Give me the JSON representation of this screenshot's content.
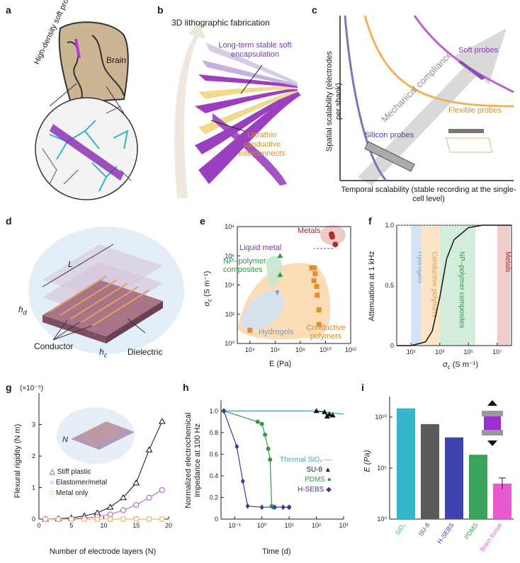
{
  "panels": {
    "a": {
      "label": "a",
      "probe": "High-density soft probe",
      "brain": "Brain"
    },
    "b": {
      "label": "b",
      "title": "3D lithographic fabrication",
      "encap": "Long-term stable soft encapsulation",
      "interconnects": "Ultrathin conductive interconnects"
    },
    "c": {
      "label": "c",
      "ylabel": "Spatial scalability (electrodes per shank)",
      "xlabel": "Temporal scalability (stable recording at the single-cell level)",
      "arrow": "Mechanical compliance",
      "soft": "Soft probes",
      "flexible": "Flexible probes",
      "silicon": "Silicon probes"
    },
    "d": {
      "label": "d",
      "L": "L",
      "hd": "h",
      "hd_sub": "d",
      "hc": "h",
      "hc_sub": "c",
      "dielectric": "Dielectric",
      "conductor": "Conductor"
    },
    "e": {
      "label": "e",
      "ylabel": "σ",
      "ylabel_sub": "c",
      "ylabel_unit": "(S m⁻¹)",
      "xlabel": "E (Pa)",
      "metals": "Metals",
      "liquid": "Liquid metal",
      "np": "NP–polymer composites",
      "hydrogels": "Hydrogels",
      "cp": "Conductive polymers",
      "yticks": [
        "10⁰",
        "10²",
        "10⁴",
        "10⁶",
        "10⁸"
      ],
      "xticks": [
        "10⁴",
        "10⁶",
        "10⁸",
        "10¹⁰",
        "10¹²"
      ]
    },
    "f": {
      "label": "f",
      "ylabel": "Attenuation at 1 kHz",
      "xlabel": "σ",
      "xlabel_sub": "c",
      "xlabel_unit": "(S m⁻¹)",
      "yticks": [
        "0",
        "0.5",
        "1.0"
      ],
      "xticks": [
        "10¹",
        "10³",
        "10⁵",
        "10⁷"
      ],
      "bands": [
        "Hydrogels",
        "Conductive polymers",
        "NP–polymer composites",
        "Metals"
      ]
    },
    "g": {
      "label": "g",
      "ylabel": "Flexural rigidity (N m)",
      "multiplier": "(×10⁻⁵)",
      "xlabel": "Number of electrode layers (N)",
      "N": "N",
      "yticks": [
        "0",
        "1",
        "2",
        "3"
      ],
      "xticks": [
        "0",
        "5",
        "10",
        "15",
        "20"
      ],
      "legend": [
        "Stiff plastic",
        "Elastomer/metal",
        "Metal only"
      ]
    },
    "h": {
      "label": "h",
      "ylabel": "Normalized electrochemical impedance at 100 Hz",
      "xlabel": "Time (d)",
      "yticks": [
        "0",
        "0.2",
        "0.4",
        "0.6",
        "0.8",
        "1.0"
      ],
      "xticks": [
        "10⁻¹",
        "10⁰",
        "10¹",
        "10²",
        "10³"
      ],
      "legend": [
        "Thermal SiO₂",
        "SU-8",
        "PDMS",
        "H-SEBS"
      ]
    },
    "i": {
      "label": "i",
      "ylabel": "E (Pa)",
      "yticks": [
        "10⁰",
        "10⁵",
        "10¹⁰"
      ]
    }
  },
  "colors": {
    "purple": "#9a3fc0",
    "orange": "#eea64a",
    "blue": "#3b3aa0",
    "green": "#2e9a4a",
    "cyan": "#34b7c9",
    "pink": "#e85ad3",
    "metalred": "#b02a2a",
    "gray": "#9a9a9a"
  },
  "chart_data": [
    {
      "panel": "e",
      "type": "scatter",
      "xlabel": "E (Pa)",
      "ylabel": "σc (S m⁻¹)",
      "xlim": [
        1000.0,
        1000000000000.0
      ],
      "ylim": [
        1,
        100000000.0
      ],
      "log": true,
      "series": [
        {
          "name": "Metals",
          "points": [
            [
              30000000000.0,
              30000000.0
            ],
            [
              35000000000.0,
              20000000.0
            ],
            [
              60000000000.0,
              6000000.0
            ]
          ]
        },
        {
          "name": "Conductive polymers",
          "points": [
            [
              10000.0,
              8
            ],
            [
              800000000.0,
              150000.0
            ],
            [
              1300000000.0,
              150000.0
            ],
            [
              1500000000.0,
              60000.0
            ],
            [
              1200000000.0,
              20000.0
            ],
            [
              2000000000.0,
              8000.0
            ],
            [
              2200000000.0,
              2000.0
            ],
            [
              3000000000.0,
              200.0
            ],
            [
              3000000000.0,
              20.0
            ]
          ]
        },
        {
          "name": "NP–polymer composites",
          "points": [
            [
              2500000.0,
              1000000.0
            ],
            [
              2500000.0,
              50000.0
            ]
          ]
        },
        {
          "name": "Hydrogels",
          "points": [
            [
              1500000.0,
              3000.0
            ]
          ]
        }
      ]
    },
    {
      "panel": "f",
      "type": "line",
      "xlabel": "σc (S m⁻¹)",
      "ylabel": "Attenuation at 1 kHz",
      "xlim": [
        1,
        100000000.0
      ],
      "ylim": [
        0,
        1
      ],
      "log_x": true,
      "x": [
        1,
        10,
        100,
        300,
        1000,
        3000,
        10000,
        100000,
        1000000.0,
        100000000.0
      ],
      "values": [
        0,
        0,
        0.03,
        0.12,
        0.4,
        0.72,
        0.88,
        0.98,
        1.0,
        1.0
      ]
    },
    {
      "panel": "g",
      "type": "line",
      "xlabel": "Number of electrode layers (N)",
      "ylabel": "Flexural rigidity (N m)",
      "xlim": [
        0,
        20
      ],
      "ylim": [
        0,
        4
      ],
      "x": [
        1,
        3,
        5,
        7,
        9,
        11,
        13,
        15,
        17,
        19
      ],
      "series": [
        {
          "name": "Stiff plastic",
          "values": [
            0.0,
            0.01,
            0.04,
            0.1,
            0.2,
            0.38,
            0.68,
            1.15,
            2.2,
            3.1
          ]
        },
        {
          "name": "Elastomer/metal",
          "values": [
            0,
            0,
            0.01,
            0.03,
            0.08,
            0.15,
            0.28,
            0.45,
            0.68,
            0.92
          ]
        },
        {
          "name": "Metal only",
          "values": [
            0,
            0,
            0,
            0,
            0,
            0,
            0,
            0,
            0,
            0
          ]
        }
      ]
    },
    {
      "panel": "h",
      "type": "line",
      "xlabel": "Time (d)",
      "ylabel": "Normalized electrochemical impedance at 100 Hz",
      "xlim": [
        0.03,
        1000
      ],
      "ylim": [
        0,
        1.1
      ],
      "log_x": true,
      "series": [
        {
          "name": "Thermal SiO₂",
          "x": [
            0.04,
            1,
            10,
            100,
            1000
          ],
          "values": [
            1.0,
            1.0,
            1.0,
            1.0,
            0.97
          ]
        },
        {
          "name": "SU-8",
          "x": [
            100,
            200,
            250,
            300,
            400
          ],
          "values": [
            1.0,
            0.99,
            0.95,
            0.97,
            0.96
          ]
        },
        {
          "name": "PDMS",
          "x": [
            0.04,
            0.7,
            1,
            1.3,
            1.7,
            2,
            2.3,
            2.6,
            10
          ],
          "values": [
            1.0,
            0.9,
            0.88,
            0.78,
            0.65,
            0.55,
            0.12,
            0.11,
            0.11
          ]
        },
        {
          "name": "H-SEBS",
          "x": [
            0.04,
            0.12,
            0.2,
            0.3,
            1,
            3,
            6,
            10
          ],
          "values": [
            1.0,
            0.67,
            0.35,
            0.12,
            0.11,
            0.11,
            0.11,
            0.11
          ]
        }
      ]
    },
    {
      "panel": "i",
      "type": "bar",
      "ylabel": "E (Pa)",
      "ylim": [
        1,
        1000000000000.0
      ],
      "log_y": true,
      "categories": [
        "SiO₂",
        "SU-8",
        "H-SEBS",
        "PDMS",
        "Brain tissue"
      ],
      "values": [
        70000000000.0,
        2000000000.0,
        100000000.0,
        2000000.0,
        3000.0
      ]
    }
  ]
}
